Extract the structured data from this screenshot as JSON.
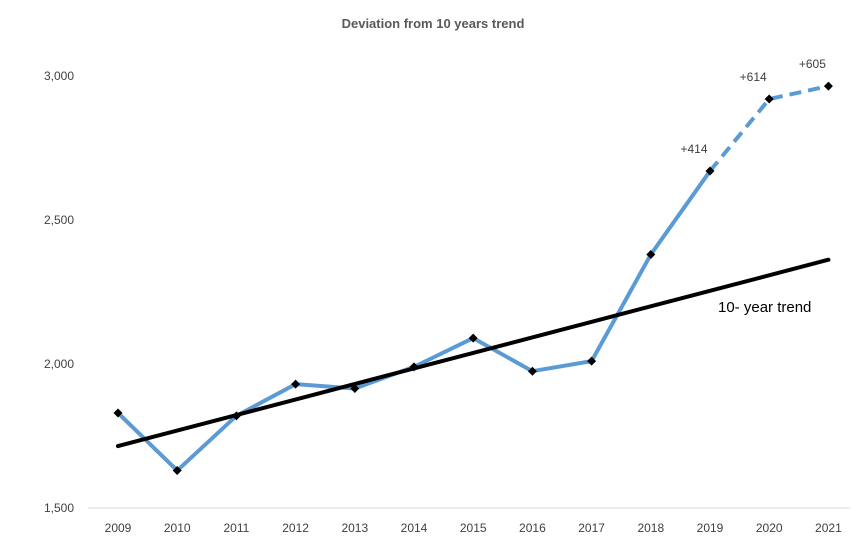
{
  "chart_data": {
    "type": "line",
    "title": "Deviation from 10 years trend",
    "xlabel": "",
    "ylabel": "",
    "ylim": [
      1500,
      3000
    ],
    "yticks": [
      1500,
      2000,
      2500,
      3000
    ],
    "ytick_labels": [
      "1,500",
      "2,000",
      "2,500",
      "3,000"
    ],
    "categories": [
      "2009",
      "2010",
      "2011",
      "2012",
      "2013",
      "2014",
      "2015",
      "2016",
      "2017",
      "2018",
      "2019",
      "2020",
      "2021"
    ],
    "series": [
      {
        "values": [
          1830,
          1630,
          1820,
          1930,
          1915,
          1990,
          2090,
          1975,
          2010,
          2380,
          2670,
          2920,
          2965
        ],
        "color": "#5b9bd5",
        "dashed_from_index": 10
      },
      {
        "name": "10- year trend",
        "trend_start": 1715,
        "trend_end": 2362,
        "color": "#000000"
      }
    ],
    "annotations": [
      {
        "category": "2019",
        "text": "+414"
      },
      {
        "category": "2020",
        "text": "+614"
      },
      {
        "category": "2021",
        "text": "+605"
      }
    ],
    "grid": false,
    "legend": "none"
  }
}
